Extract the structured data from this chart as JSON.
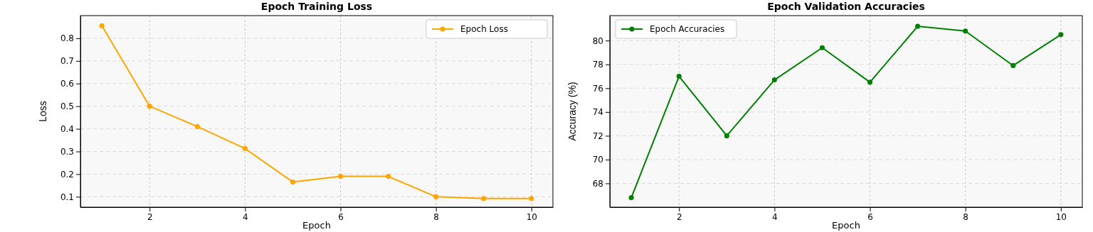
{
  "chart_data": [
    {
      "type": "line",
      "title": "Epoch Training Loss",
      "xlabel": "Epoch",
      "ylabel": "Loss",
      "x": [
        1,
        2,
        3,
        4,
        5,
        6,
        7,
        8,
        9,
        10
      ],
      "series": [
        {
          "name": "Epoch Loss",
          "color": "#ffa500",
          "values": [
            0.855,
            0.5,
            0.41,
            0.313,
            0.165,
            0.19,
            0.19,
            0.1,
            0.092,
            0.092
          ]
        }
      ],
      "xlim": [
        0.55,
        10.45
      ],
      "xticks": [
        2,
        4,
        6,
        8,
        10
      ],
      "ylim": [
        0.054,
        0.9
      ],
      "yticks": [
        0.1,
        0.2,
        0.3,
        0.4,
        0.5,
        0.6,
        0.7,
        0.8
      ],
      "grid": true,
      "legend": "top right",
      "marker": "circle",
      "line_style": "solid"
    },
    {
      "type": "line",
      "title": "Epoch Validation Accuracies",
      "xlabel": "Epoch",
      "ylabel": "Accuracy (%)",
      "x": [
        1,
        2,
        3,
        4,
        5,
        6,
        7,
        8,
        9,
        10
      ],
      "series": [
        {
          "name": "Epoch Accuracies",
          "color": "#008000",
          "values": [
            66.8,
            77.0,
            72.0,
            76.7,
            79.4,
            76.5,
            81.2,
            80.8,
            77.9,
            80.5
          ]
        }
      ],
      "xlim": [
        0.55,
        10.45
      ],
      "xticks": [
        2,
        4,
        6,
        8,
        10
      ],
      "ylim": [
        66.0,
        82.1
      ],
      "yticks": [
        68,
        70,
        72,
        74,
        76,
        78,
        80
      ],
      "grid": true,
      "legend": "top left",
      "marker": "circle",
      "line_style": "solid"
    }
  ]
}
